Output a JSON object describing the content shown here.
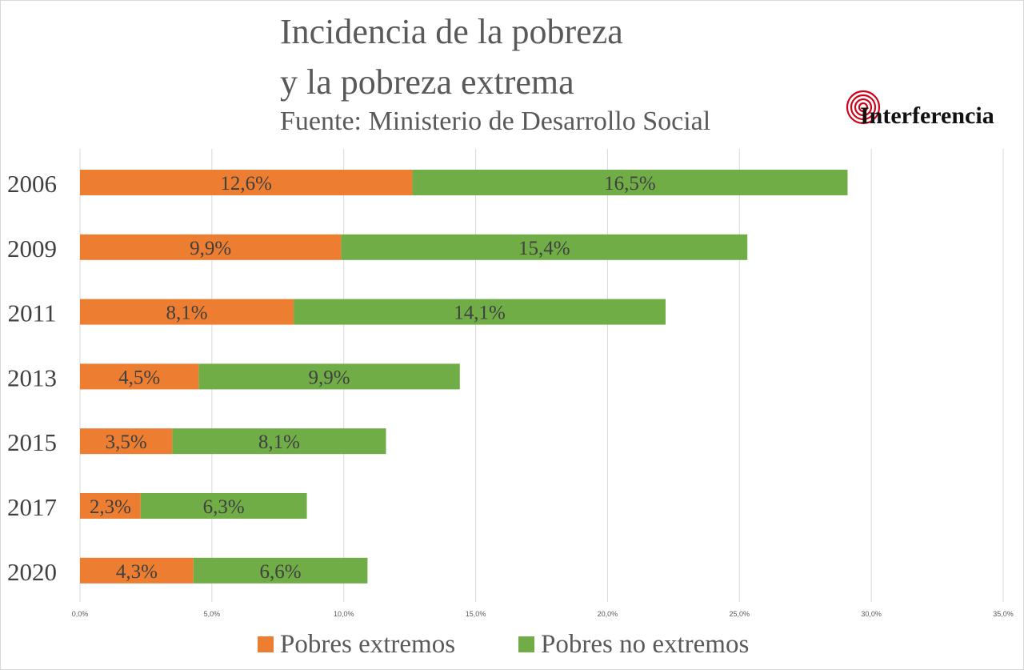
{
  "header": {
    "title_line1": "Incidencia de la pobreza",
    "title_line2": "y la pobreza extrema",
    "source": "Fuente: Ministerio de Desarrollo Social",
    "brand": "Interferencia"
  },
  "chart_data": {
    "type": "bar",
    "orientation": "horizontal",
    "stacked": true,
    "categories": [
      "2006",
      "2009",
      "2011",
      "2013",
      "2015",
      "2017",
      "2020"
    ],
    "series": [
      {
        "name": "Pobres extremos",
        "color": "#ed7d31",
        "values": [
          12.6,
          9.9,
          8.1,
          4.5,
          3.5,
          2.3,
          4.3
        ],
        "labels": [
          "12,6%",
          "9,9%",
          "8,1%",
          "4,5%",
          "3,5%",
          "2,3%",
          "4,3%"
        ]
      },
      {
        "name": "Pobres no extremos",
        "color": "#70ad47",
        "values": [
          16.5,
          15.4,
          14.1,
          9.9,
          8.1,
          6.3,
          6.6
        ],
        "labels": [
          "16,5%",
          "15,4%",
          "14,1%",
          "9,9%",
          "8,1%",
          "6,3%",
          "6,6%"
        ]
      }
    ],
    "xlim": [
      0,
      35
    ],
    "xticks": [
      0,
      5,
      10,
      15,
      20,
      25,
      30,
      35
    ],
    "xtick_labels": [
      "0,0%",
      "5,0%",
      "10,0%",
      "15,0%",
      "20,0%",
      "25,0%",
      "30,0%",
      "35,0%"
    ],
    "grid": true,
    "legend_position": "bottom"
  }
}
